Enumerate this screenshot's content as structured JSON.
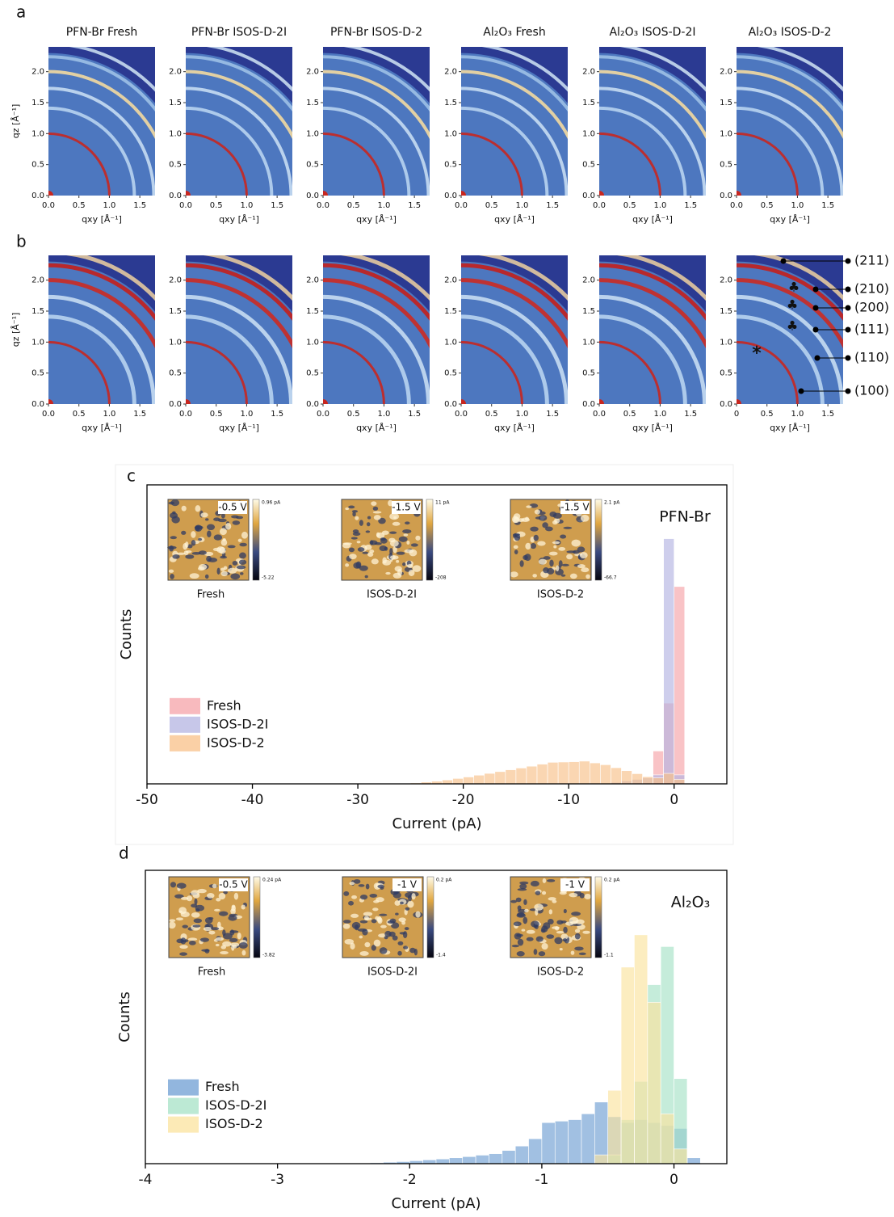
{
  "panel_labels": [
    "a",
    "b",
    "c",
    "d"
  ],
  "chart_data": [
    {
      "type": "image",
      "title": "PFN-Br Fresh",
      "xlabel": "qxy [Å⁻¹]",
      "ylabel": "qz [Å⁻¹]",
      "xlim": [
        0,
        1.75
      ],
      "ylim": [
        0,
        2.4
      ],
      "xticks": [
        {
          "value": 0,
          "label": "0.0"
        },
        0.5,
        {
          "value": 1,
          "label": "1.0"
        },
        1.5
      ],
      "yticks": [
        {
          "value": 0,
          "label": "0.0"
        },
        0.5,
        {
          "value": 1,
          "label": "1.0"
        },
        1.5,
        {
          "value": 2,
          "label": "2.0"
        }
      ]
    },
    {
      "type": "image",
      "title": "PFN-Br ISOS-D-2I",
      "xlabel": "qxy [Å⁻¹]",
      "xlim": [
        0,
        1.75
      ],
      "ylim": [
        0,
        2.4
      ],
      "xticks": [
        {
          "value": 0,
          "label": "0.0"
        },
        0.5,
        {
          "value": 1,
          "label": "1.0"
        },
        1.5
      ],
      "yticks": [
        {
          "value": 0,
          "label": "0.0"
        },
        0.5,
        {
          "value": 1,
          "label": "1.0"
        },
        1.5,
        {
          "value": 2,
          "label": "2.0"
        }
      ]
    },
    {
      "type": "image",
      "title": "PFN-Br ISOS-D-2",
      "xlabel": "qxy [Å⁻¹]",
      "xlim": [
        0,
        1.75
      ],
      "ylim": [
        0,
        2.4
      ],
      "xticks": [
        {
          "value": 0,
          "label": "0.0"
        },
        0.5,
        {
          "value": 1,
          "label": "1.0"
        },
        1.5
      ],
      "yticks": [
        {
          "value": 0,
          "label": "0.0"
        },
        0.5,
        {
          "value": 1,
          "label": "1.0"
        },
        1.5,
        {
          "value": 2,
          "label": "2.0"
        }
      ]
    },
    {
      "type": "image",
      "title": "Al₂O₃ Fresh",
      "xlabel": "qxy [Å⁻¹]",
      "xlim": [
        0,
        1.75
      ],
      "ylim": [
        0,
        2.4
      ],
      "xticks": [
        {
          "value": 0,
          "label": "0.0"
        },
        0.5,
        {
          "value": 1,
          "label": "1.0"
        },
        1.5
      ],
      "yticks": [
        {
          "value": 0,
          "label": "0.0"
        },
        0.5,
        {
          "value": 1,
          "label": "1.0"
        },
        1.5,
        {
          "value": 2,
          "label": "2.0"
        }
      ]
    },
    {
      "type": "image",
      "title": "Al₂O₃ ISOS-D-2I",
      "xlabel": "qxy [Å⁻¹]",
      "xlim": [
        0,
        1.75
      ],
      "ylim": [
        0,
        2.4
      ],
      "xticks": [
        {
          "value": 0,
          "label": "0.0"
        },
        0.5,
        {
          "value": 1,
          "label": "1.0"
        },
        1.5
      ],
      "yticks": [
        {
          "value": 0,
          "label": "0.0"
        },
        0.5,
        {
          "value": 1,
          "label": "1.0"
        },
        1.5,
        {
          "value": 2,
          "label": "2.0"
        }
      ]
    },
    {
      "type": "image",
      "title": "Al₂O₃ ISOS-D-2",
      "xlabel": "qxy [Å⁻¹]",
      "xlim": [
        0,
        1.75
      ],
      "ylim": [
        0,
        2.4
      ],
      "xticks": [
        {
          "value": 0,
          "label": "0.0"
        },
        0.5,
        {
          "value": 1,
          "label": "1.0"
        },
        1.5
      ],
      "yticks": [
        {
          "value": 0,
          "label": "0.0"
        },
        0.5,
        {
          "value": 1,
          "label": "1.0"
        },
        1.5,
        {
          "value": 2,
          "label": "2.0"
        }
      ]
    },
    {
      "type": "image",
      "xlabel": "qxy [Å⁻¹]",
      "ylabel": "qz [Å⁻¹]",
      "xlim": [
        0,
        1.75
      ],
      "ylim": [
        0,
        2.4
      ],
      "xticks": [
        {
          "value": 0,
          "label": "0.0"
        },
        0.5,
        {
          "value": 1,
          "label": "1.0"
        },
        1.5
      ],
      "yticks": [
        {
          "value": 0,
          "label": "0.0"
        },
        0.5,
        {
          "value": 1,
          "label": "1.0"
        },
        1.5,
        {
          "value": 2,
          "label": "2.0"
        }
      ]
    },
    {
      "type": "image",
      "xlabel": "qxy [Å⁻¹]",
      "xlim": [
        0,
        1.75
      ],
      "ylim": [
        0,
        2.4
      ],
      "xticks": [
        {
          "value": 0,
          "label": "0.0"
        },
        0.5,
        {
          "value": 1,
          "label": "1.0"
        },
        1.5
      ],
      "yticks": [
        {
          "value": 0,
          "label": "0.0"
        },
        0.5,
        {
          "value": 1,
          "label": "1.0"
        },
        1.5,
        {
          "value": 2,
          "label": "2.0"
        }
      ]
    },
    {
      "type": "image",
      "xlabel": "qxy [Å⁻¹]",
      "xlim": [
        0,
        1.75
      ],
      "ylim": [
        0,
        2.4
      ],
      "xticks": [
        {
          "value": 0,
          "label": "0.0"
        },
        0.5,
        {
          "value": 1,
          "label": "1.0"
        },
        1.5
      ],
      "yticks": [
        {
          "value": 0,
          "label": "0.0"
        },
        0.5,
        {
          "value": 1,
          "label": "1.0"
        },
        1.5,
        {
          "value": 2,
          "label": "2.0"
        }
      ]
    },
    {
      "type": "image",
      "xlabel": "qxy [Å⁻¹]",
      "xlim": [
        0,
        1.75
      ],
      "ylim": [
        0,
        2.4
      ],
      "xticks": [
        {
          "value": 0,
          "label": "0.0"
        },
        0.5,
        {
          "value": 1,
          "label": "1.0"
        },
        1.5
      ],
      "yticks": [
        {
          "value": 0,
          "label": "0.0"
        },
        0.5,
        {
          "value": 1,
          "label": "1.0"
        },
        1.5,
        {
          "value": 2,
          "label": "2.0"
        }
      ]
    },
    {
      "type": "image",
      "xlabel": "qxy [Å⁻¹]",
      "xlim": [
        0,
        1.75
      ],
      "ylim": [
        0,
        2.4
      ],
      "xticks": [
        {
          "value": 0,
          "label": "0.0"
        },
        0.5,
        {
          "value": 1,
          "label": "1.0"
        },
        1.5
      ],
      "yticks": [
        {
          "value": 0,
          "label": "0.0"
        },
        0.5,
        {
          "value": 1,
          "label": "1.0"
        },
        1.5,
        {
          "value": 2,
          "label": "2.0"
        }
      ]
    },
    {
      "type": "image",
      "xlabel": "qxy [Å⁻¹]",
      "xlim": [
        0,
        1.75
      ],
      "ylim": [
        0,
        2.4
      ],
      "xticks": [
        0,
        0.5,
        {
          "value": 1,
          "label": "1.0"
        },
        1.5
      ],
      "yticks": [
        {
          "value": 0,
          "label": "0.0"
        },
        0.5,
        {
          "value": 1,
          "label": "1.0"
        },
        1.5,
        {
          "value": 2,
          "label": "2.0"
        }
      ],
      "annotations": [
        "(211)",
        "(210)",
        "(200)",
        "(111)",
        "(110)",
        "(100)"
      ],
      "symbols": [
        "♣",
        "♣",
        "♣",
        "*"
      ]
    },
    {
      "type": "histogram",
      "xlabel": "Current (pA)",
      "ylabel": "Counts",
      "annotation": "PFN-Br",
      "legend": "center left",
      "xlim": [
        -50,
        5
      ],
      "ylim": [
        0,
        100
      ],
      "xticks": [
        -50,
        -40,
        -30,
        -20,
        -10,
        0
      ],
      "bins": [
        -25,
        -24,
        -23,
        -22,
        -21,
        -20,
        -19,
        -18,
        -17,
        -16,
        -15,
        -14,
        -13,
        -12,
        -11,
        -10,
        -9,
        -8,
        -7,
        -6,
        -5,
        -4,
        -3,
        -2,
        -1,
        0,
        1
      ],
      "series": [
        {
          "name": "Fresh",
          "color": "#f6a3a8",
          "values": [
            0,
            0,
            0,
            0,
            0,
            0,
            0,
            0,
            0,
            0,
            0,
            0,
            0,
            0,
            0,
            0,
            0,
            0,
            0,
            0,
            0,
            0,
            0,
            11,
            27,
            66
          ]
        },
        {
          "name": "ISOS-D-2I",
          "color": "#b4b4e2",
          "values": [
            0,
            0,
            0,
            0,
            0,
            0,
            0,
            0,
            0,
            0,
            0,
            0,
            0,
            0,
            0,
            0,
            0,
            0,
            0,
            0.5,
            1,
            1.5,
            2,
            3,
            82,
            3
          ]
        },
        {
          "name": "ISOS-D-2",
          "color": "#f8c088",
          "values": [
            0.3,
            0.6,
            0.9,
            1.3,
            1.8,
            2.3,
            2.9,
            3.5,
            4.1,
            4.7,
            5.3,
            5.9,
            6.6,
            7.2,
            7.3,
            7.4,
            7.6,
            7.0,
            6.4,
            5.4,
            4.4,
            3.4,
            2.4,
            2.0,
            3.5,
            1.5
          ]
        }
      ],
      "insets": [
        {
          "label": "Fresh",
          "bias": "-0.5 V",
          "cbar_max": "0.96 pA",
          "cbar_min": "-5.22"
        },
        {
          "label": "ISOS-D-2I",
          "bias": "-1.5 V",
          "cbar_max": "11 pA",
          "cbar_min": "-208"
        },
        {
          "label": "ISOS-D-2",
          "bias": "-1.5 V",
          "cbar_max": "2.1 pA",
          "cbar_min": "-66.7"
        }
      ]
    },
    {
      "type": "histogram",
      "xlabel": "Current (pA)",
      "ylabel": "Counts",
      "annotation": "Al₂O₃",
      "legend": "center left",
      "xlim": [
        -4,
        0.4
      ],
      "ylim": [
        0,
        100
      ],
      "xticks": [
        -4,
        -3,
        -2,
        -1,
        0
      ],
      "bins": [
        -2.3,
        -2.2,
        -2.1,
        -2,
        -1.9,
        -1.8,
        -1.7,
        -1.6,
        -1.5,
        -1.4,
        -1.3,
        -1.2,
        -1.1,
        -1,
        -0.9,
        -0.8,
        -0.7,
        -0.6,
        -0.5,
        -0.4,
        -0.3,
        -0.2,
        -0.1,
        0,
        0.1,
        0.2
      ],
      "series": [
        {
          "name": "Fresh",
          "color": "#6e9ed3",
          "values": [
            0.3,
            0.5,
            0.7,
            1,
            1.3,
            1.6,
            2,
            2.4,
            2.9,
            3.4,
            4.5,
            6,
            8.5,
            14,
            14.5,
            15,
            17,
            21,
            16,
            14,
            15,
            14,
            13,
            12,
            2
          ]
        },
        {
          "name": "ISOS-D-2I",
          "color": "#a6e2c6",
          "values": [
            0,
            0,
            0,
            0,
            0,
            0,
            0,
            0,
            0,
            0,
            0,
            0,
            0,
            0,
            0,
            0,
            0,
            0,
            3,
            15,
            28,
            61,
            74,
            29,
            0
          ]
        },
        {
          "name": "ISOS-D-2",
          "color": "#fbe39e",
          "values": [
            0,
            0,
            0,
            0,
            0,
            0,
            0,
            0,
            0,
            0,
            0,
            0,
            0,
            0,
            0,
            0,
            0,
            3,
            25,
            67,
            78,
            55,
            17,
            5,
            0
          ]
        }
      ],
      "insets": [
        {
          "label": "Fresh",
          "bias": "-0.5 V",
          "cbar_max": "0.24 pA",
          "cbar_min": "-3.82"
        },
        {
          "label": "ISOS-D-2I",
          "bias": "-1 V",
          "cbar_max": "0.2 pA",
          "cbar_min": "-1.4"
        },
        {
          "label": "ISOS-D-2",
          "bias": "-1 V",
          "cbar_max": "0.2 pA",
          "cbar_min": "-1.1"
        }
      ]
    }
  ]
}
